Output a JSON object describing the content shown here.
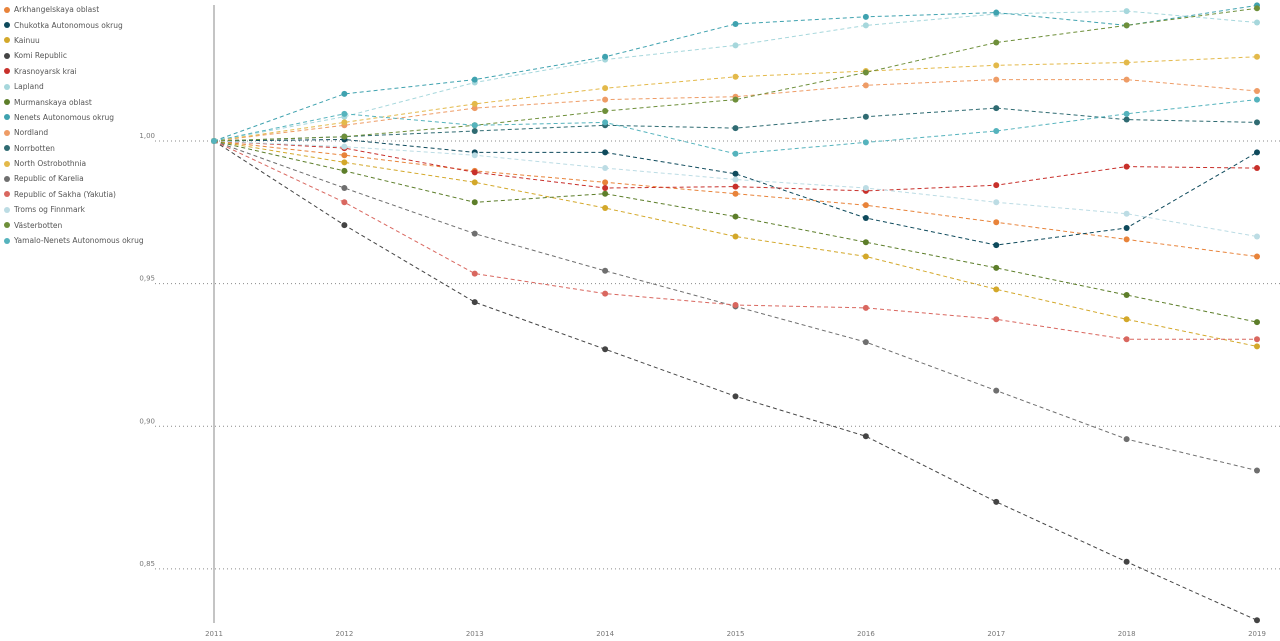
{
  "chart_data": {
    "type": "line",
    "title": "",
    "xlabel": "",
    "ylabel": "",
    "x": [
      "2011",
      "2012",
      "2013",
      "2014",
      "2015",
      "2016",
      "2017",
      "2018",
      "2019"
    ],
    "ylim": [
      0.83,
      1.048
    ],
    "yticks": [
      {
        "value": 1.0,
        "label": "1,00"
      },
      {
        "value": 0.95,
        "label": "0,95"
      },
      {
        "value": 0.9,
        "label": "0,90"
      },
      {
        "value": 0.85,
        "label": "0,85"
      }
    ],
    "grid": true,
    "legend_position": "top-left",
    "line_style": "dashed",
    "series": [
      {
        "name": "Arkhangelskaya oblast",
        "color": "#E8833A",
        "values": [
          1.0,
          0.995,
          0.9895,
          0.9855,
          0.9815,
          0.9775,
          0.9715,
          0.9655,
          0.9595
        ]
      },
      {
        "name": "Chukotka Autonomous okrug",
        "color": "#0E4A5C",
        "values": [
          1.0,
          1.0005,
          0.996,
          0.996,
          0.9885,
          0.973,
          0.9635,
          0.9695,
          0.996
        ]
      },
      {
        "name": "Kainuu",
        "color": "#D3A82A",
        "values": [
          1.0,
          0.9925,
          0.9855,
          0.9765,
          0.9665,
          0.9595,
          0.948,
          0.9375,
          0.928
        ]
      },
      {
        "name": "Komi Republic",
        "color": "#444444",
        "values": [
          1.0,
          0.9705,
          0.9435,
          0.927,
          0.9105,
          0.8965,
          0.8735,
          0.8525,
          0.832
        ]
      },
      {
        "name": "Krasnoyarsk krai",
        "color": "#C8302B",
        "values": [
          1.0,
          0.9975,
          0.989,
          0.9835,
          0.984,
          0.9825,
          0.9845,
          0.991,
          0.9905
        ]
      },
      {
        "name": "Lapland",
        "color": "#A6D7DC",
        "values": [
          1.0,
          1.0085,
          1.0205,
          1.0285,
          1.0335,
          1.0405,
          1.0445,
          1.0455,
          1.0415
        ]
      },
      {
        "name": "Murmanskaya oblast",
        "color": "#5D7E2A",
        "values": [
          1.0,
          0.9895,
          0.9785,
          0.9815,
          0.9735,
          0.9645,
          0.9555,
          0.946,
          0.9365
        ]
      },
      {
        "name": "Nenets Autonomous okrug",
        "color": "#3FA2AF",
        "values": [
          1.0,
          1.0165,
          1.0215,
          1.0295,
          1.041,
          1.0435,
          1.045,
          1.0405,
          1.0475
        ]
      },
      {
        "name": "Nordland",
        "color": "#EE9C66",
        "values": [
          1.0,
          1.0055,
          1.0115,
          1.0145,
          1.0155,
          1.0195,
          1.0215,
          1.0215,
          1.0175
        ]
      },
      {
        "name": "Norrbotten",
        "color": "#2F6B72",
        "values": [
          1.0,
          1.0015,
          1.0035,
          1.0055,
          1.0045,
          1.0085,
          1.0115,
          1.0075,
          1.0065
        ]
      },
      {
        "name": "North Ostrobothnia",
        "color": "#E3B94A",
        "values": [
          1.0,
          1.0065,
          1.013,
          1.0185,
          1.0225,
          1.0245,
          1.0265,
          1.0275,
          1.0295
        ]
      },
      {
        "name": "Republic of Karelia",
        "color": "#6F6F6F",
        "values": [
          1.0,
          0.9835,
          0.9675,
          0.9545,
          0.942,
          0.9295,
          0.9125,
          0.8955,
          0.8845
        ]
      },
      {
        "name": "Republic of Sakha (Yakutia)",
        "color": "#D9675F",
        "values": [
          1.0,
          0.9785,
          0.9535,
          0.9465,
          0.9425,
          0.9415,
          0.9375,
          0.9305,
          0.9305
        ]
      },
      {
        "name": "Troms og Finnmark",
        "color": "#BCDCE4",
        "values": [
          1.0,
          0.998,
          0.995,
          0.9905,
          0.9865,
          0.9835,
          0.9785,
          0.9745,
          0.9665
        ]
      },
      {
        "name": "Västerbotten",
        "color": "#6E8F3A",
        "values": [
          1.0,
          1.0015,
          1.0055,
          1.0105,
          1.0145,
          1.024,
          1.0345,
          1.0405,
          1.0465
        ]
      },
      {
        "name": "Yamalo-Nenets Autonomous okrug",
        "color": "#55B3BD",
        "values": [
          1.0,
          1.0095,
          1.0055,
          1.0065,
          0.9955,
          0.9995,
          1.0035,
          1.0095,
          1.0145
        ]
      }
    ]
  }
}
